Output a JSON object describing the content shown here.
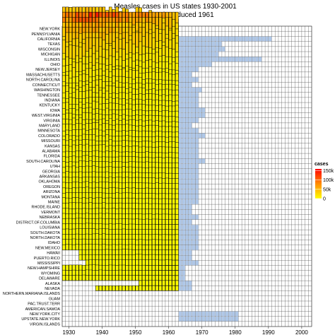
{
  "chart_data": {
    "type": "heatmap",
    "title_lines": [
      "Measles cases in US states 1930-2001",
      "Vaccine introduced 1961"
    ],
    "xlabel": "",
    "ylabel": "",
    "x_range": [
      1928,
      2003
    ],
    "x_ticks": [
      1930,
      1940,
      1950,
      1960,
      1970,
      1980,
      1990,
      2000
    ],
    "x_tick_labels": [
      "1930",
      "1940",
      "1950",
      "1960",
      "1970",
      "1980",
      "1990",
      "2000"
    ],
    "year_range": [
      1928,
      2002
    ],
    "grid": true,
    "legend_position": "right",
    "legend": {
      "title": "cases",
      "ticks": [
        0,
        50000,
        100000,
        150000
      ],
      "tick_labels": [
        "0",
        "50k",
        "100k",
        "150k"
      ],
      "max": 160000
    },
    "colors": {
      "low": "#ffff00",
      "mid": "#ff8c00",
      "high": "#ff0000",
      "missing_cell": "#ffffff",
      "small_value": "#aec7e8",
      "grid_line": "#333333",
      "cell_border": "#000000"
    },
    "states": [
      "NEW.YORK",
      "PENNSYLVANIA",
      "CALIFORNIA",
      "TEXAS",
      "WISCONSIN",
      "MICHIGAN",
      "ILLINOIS",
      "OHIO",
      "NEW.JERSEY",
      "MASSACHUSETTS",
      "NORTH.CAROLINA",
      "CONNECTICUT",
      "WASHINGTON",
      "TENNESSEE",
      "INDIANA",
      "KENTUCKY",
      "IOWA",
      "WEST.VIRGINIA",
      "VIRGINIA",
      "MARYLAND",
      "MINNESOTA",
      "COLORADO",
      "MISSOURI",
      "KANSAS",
      "ALABAMA",
      "FLORIDA",
      "SOUTH.CAROLINA",
      "UTAH",
      "GEORGIA",
      "ARKANSAS",
      "OKLAHOMA",
      "OREGON",
      "ARIZONA",
      "MONTANA",
      "MAINE",
      "RHODE.ISLAND",
      "VERMONT",
      "NEBRASKA",
      "DISTRICT.OF.COLUMBIA",
      "LOUISIANA",
      "SOUTH.DAKOTA",
      "NORTH.DAKOTA",
      "IDAHO",
      "NEW.MEXICO",
      "HAWAII",
      "PUERTO.RICO",
      "MISSISSIPPI",
      "NEW.HAMPSHIRE",
      "WYOMING",
      "DELAWARE",
      "ALASKA",
      "NEVADA",
      "NORTHERN.MARIANA.ISLANDS",
      "GUAM",
      "PAC.TRUST.TERR",
      "AMERICAN.SAMOA",
      "NEW.YORK.CITY",
      "UPSTATE.NEW.YORK",
      "VIRGIN.ISLANDS"
    ],
    "series": [
      {
        "name": "NEW.YORK",
        "start": 1928,
        "end": 1962,
        "peak": 60000,
        "peak_year": 1933
      },
      {
        "name": "PENNSYLVANIA",
        "start": 1928,
        "end": 1962,
        "peak": 150000,
        "peak_year": 1938
      },
      {
        "name": "CALIFORNIA",
        "start": 1928,
        "end": 1990,
        "peak": 120000,
        "peak_year": 1936
      },
      {
        "name": "TEXAS",
        "start": 1928,
        "end": 1975,
        "peak": 80000,
        "peak_year": 1935
      },
      {
        "name": "WISCONSIN",
        "start": 1928,
        "end": 1976,
        "peak": 75000,
        "peak_year": 1936
      },
      {
        "name": "MICHIGAN",
        "start": 1928,
        "end": 1974,
        "peak": 60000,
        "peak_year": 1937
      },
      {
        "name": "ILLINOIS",
        "start": 1928,
        "end": 1987,
        "peak": 45000,
        "peak_year": 1936
      },
      {
        "name": "OHIO",
        "start": 1928,
        "end": 1972,
        "peak": 35000,
        "peak_year": 1936
      },
      {
        "name": "NEW.JERSEY",
        "start": 1928,
        "end": 1968,
        "peak": 25000,
        "peak_year": 1937
      },
      {
        "name": "MASSACHUSETTS",
        "start": 1928,
        "end": 1966,
        "peak": 20000,
        "peak_year": 1934
      },
      {
        "name": "NORTH.CAROLINA",
        "start": 1928,
        "end": 1968,
        "peak": 20000,
        "peak_year": 1937
      },
      {
        "name": "CONNECTICUT",
        "start": 1928,
        "end": 1966,
        "peak": 15000,
        "peak_year": 1935
      },
      {
        "name": "WASHINGTON",
        "start": 1928,
        "end": 1969,
        "peak": 15000,
        "peak_year": 1936
      },
      {
        "name": "TENNESSEE",
        "start": 1928,
        "end": 1968,
        "peak": 15000,
        "peak_year": 1936
      },
      {
        "name": "INDIANA",
        "start": 1928,
        "end": 1968,
        "peak": 15000,
        "peak_year": 1934
      },
      {
        "name": "KENTUCKY",
        "start": 1928,
        "end": 1968,
        "peak": 12000,
        "peak_year": 1935
      },
      {
        "name": "IOWA",
        "start": 1928,
        "end": 1970,
        "peak": 12000,
        "peak_year": 1937
      },
      {
        "name": "WEST.VIRGINIA",
        "start": 1928,
        "end": 1970,
        "peak": 10000,
        "peak_year": 1936
      },
      {
        "name": "VIRGINIA",
        "start": 1928,
        "end": 1968,
        "peak": 10000,
        "peak_year": 1934
      },
      {
        "name": "MARYLAND",
        "start": 1928,
        "end": 1966,
        "peak": 10000,
        "peak_year": 1935
      },
      {
        "name": "MINNESOTA",
        "start": 1928,
        "end": 1968,
        "peak": 10000,
        "peak_year": 1937
      },
      {
        "name": "COLORADO",
        "start": 1928,
        "end": 1970,
        "peak": 8000,
        "peak_year": 1936
      },
      {
        "name": "MISSOURI",
        "start": 1928,
        "end": 1968,
        "peak": 8000,
        "peak_year": 1935
      },
      {
        "name": "KANSAS",
        "start": 1928,
        "end": 1968,
        "peak": 8000,
        "peak_year": 1936
      },
      {
        "name": "ALABAMA",
        "start": 1928,
        "end": 1968,
        "peak": 8000,
        "peak_year": 1935
      },
      {
        "name": "FLORIDA",
        "start": 1928,
        "end": 1968,
        "peak": 6000,
        "peak_year": 1936
      },
      {
        "name": "SOUTH.CAROLINA",
        "start": 1928,
        "end": 1970,
        "peak": 6000,
        "peak_year": 1935
      },
      {
        "name": "UTAH",
        "start": 1928,
        "end": 1968,
        "peak": 6000,
        "peak_year": 1937
      },
      {
        "name": "GEORGIA",
        "start": 1928,
        "end": 1968,
        "peak": 6000,
        "peak_year": 1936
      },
      {
        "name": "ARKANSAS",
        "start": 1928,
        "end": 1968,
        "peak": 5000,
        "peak_year": 1935
      },
      {
        "name": "OKLAHOMA",
        "start": 1928,
        "end": 1968,
        "peak": 5000,
        "peak_year": 1936
      },
      {
        "name": "OREGON",
        "start": 1928,
        "end": 1968,
        "peak": 5000,
        "peak_year": 1935
      },
      {
        "name": "ARIZONA",
        "start": 1928,
        "end": 1968,
        "peak": 4000,
        "peak_year": 1936
      },
      {
        "name": "MONTANA",
        "start": 1928,
        "end": 1968,
        "peak": 4000,
        "peak_year": 1937
      },
      {
        "name": "MAINE",
        "start": 1928,
        "end": 1968,
        "peak": 4000,
        "peak_year": 1935
      },
      {
        "name": "RHODE.ISLAND",
        "start": 1928,
        "end": 1966,
        "peak": 4000,
        "peak_year": 1934
      },
      {
        "name": "VERMONT",
        "start": 1928,
        "end": 1966,
        "peak": 3000,
        "peak_year": 1936
      },
      {
        "name": "NEBRASKA",
        "start": 1928,
        "end": 1968,
        "peak": 3000,
        "peak_year": 1935
      },
      {
        "name": "DISTRICT.OF.COLUMBIA",
        "start": 1928,
        "end": 1966,
        "peak": 3000,
        "peak_year": 1936
      },
      {
        "name": "LOUISIANA",
        "start": 1928,
        "end": 1968,
        "peak": 3000,
        "peak_year": 1935
      },
      {
        "name": "SOUTH.DAKOTA",
        "start": 1928,
        "end": 1968,
        "peak": 2500,
        "peak_year": 1936
      },
      {
        "name": "NORTH.DAKOTA",
        "start": 1928,
        "end": 1968,
        "peak": 2500,
        "peak_year": 1937
      },
      {
        "name": "IDAHO",
        "start": 1928,
        "end": 1968,
        "peak": 2500,
        "peak_year": 1935
      },
      {
        "name": "NEW.MEXICO",
        "start": 1928,
        "end": 1968,
        "peak": 2000,
        "peak_year": 1936
      },
      {
        "name": "HAWAII",
        "start": 1933,
        "end": 1966,
        "peak": 2000,
        "peak_year": 1945
      },
      {
        "name": "PUERTO.RICO",
        "start": 1933,
        "end": 1966,
        "peak": 2000,
        "peak_year": 1950
      },
      {
        "name": "MISSISSIPPI",
        "start": 1935,
        "end": 1968,
        "peak": 2000,
        "peak_year": 1945
      },
      {
        "name": "NEW.HAMPSHIRE",
        "start": 1928,
        "end": 1964,
        "peak": 1500,
        "peak_year": 1936
      },
      {
        "name": "WYOMING",
        "start": 1928,
        "end": 1964,
        "peak": 1500,
        "peak_year": 1937
      },
      {
        "name": "DELAWARE",
        "start": 1928,
        "end": 1964,
        "peak": 1500,
        "peak_year": 1935
      },
      {
        "name": "ALASKA",
        "start": 1951,
        "end": 1966,
        "peak": 1000,
        "peak_year": 1955
      },
      {
        "name": "NEVADA",
        "start": 1938,
        "end": 1966,
        "peak": 800,
        "peak_year": 1950
      },
      {
        "name": "NORTHERN.MARIANA.ISLANDS",
        "start": null,
        "end": null,
        "peak": 0,
        "peak_year": null
      },
      {
        "name": "GUAM",
        "start": null,
        "end": null,
        "peak": 0,
        "peak_year": null
      },
      {
        "name": "PAC.TRUST.TERR",
        "start": null,
        "end": null,
        "peak": 0,
        "peak_year": null
      },
      {
        "name": "AMERICAN.SAMOA",
        "start": null,
        "end": null,
        "peak": 0,
        "peak_year": null
      },
      {
        "name": "NEW.YORK.CITY",
        "start": 1963,
        "end": 1980,
        "peak": 10000,
        "peak_year": 1966
      },
      {
        "name": "UPSTATE.NEW.YORK",
        "start": 1963,
        "end": 1980,
        "peak": 15000,
        "peak_year": 1976
      },
      {
        "name": "VIRGIN.ISLANDS",
        "start": null,
        "end": null,
        "peak": 0,
        "peak_year": null
      }
    ]
  }
}
